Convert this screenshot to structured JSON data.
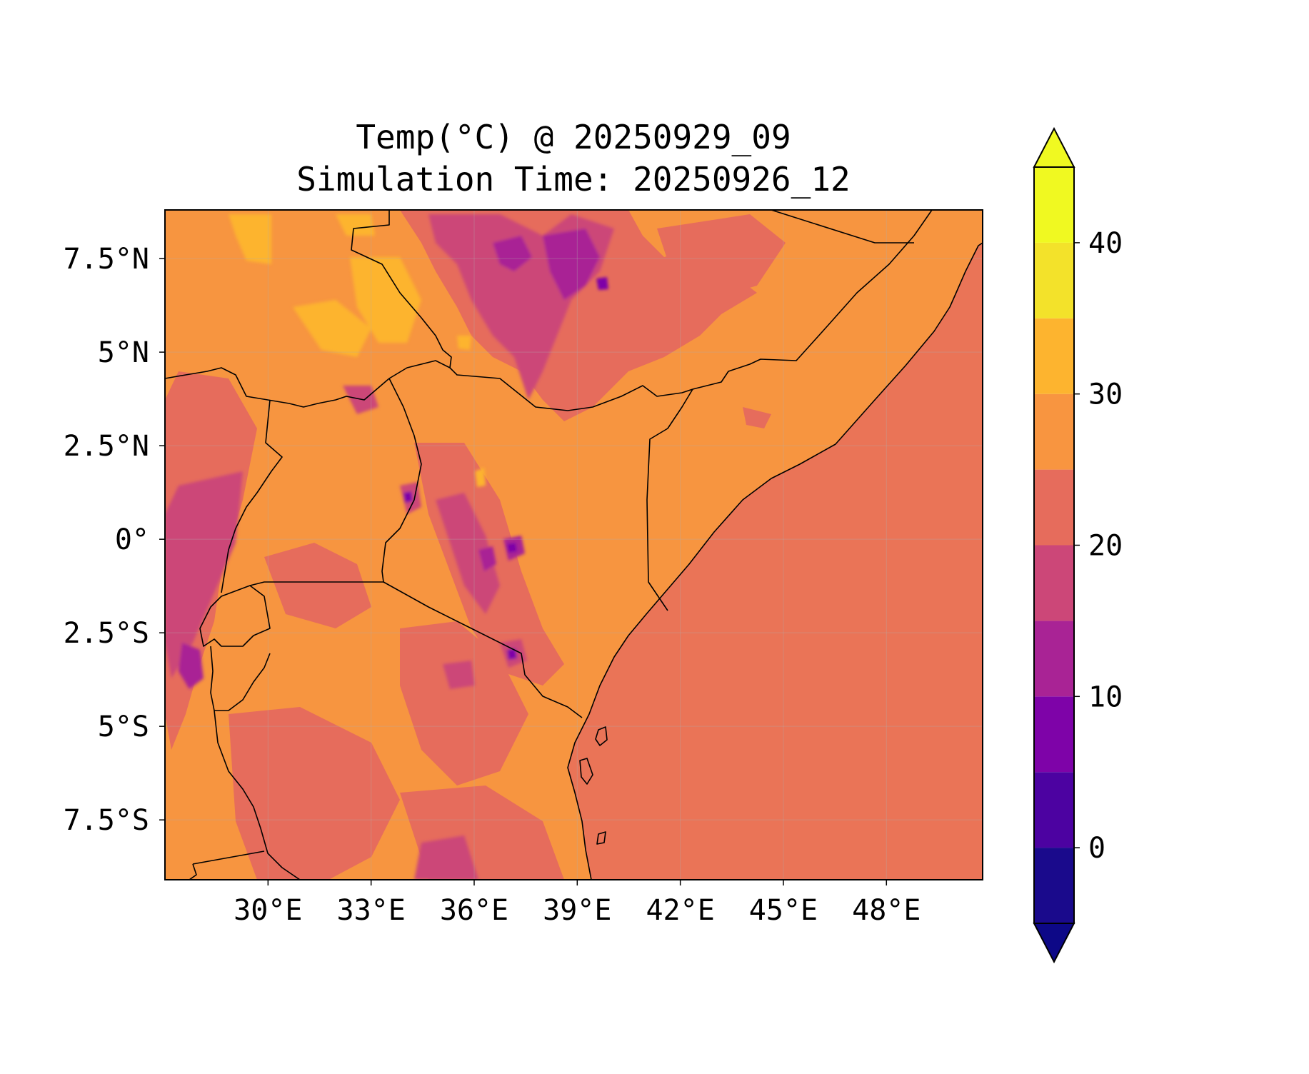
{
  "title": {
    "line1": "Temp(°C) @ 20250929_09",
    "line2": "Simulation Time: 20250926_12"
  },
  "map": {
    "lon_range": [
      27.0,
      50.8
    ],
    "lat_range": [
      -9.1,
      8.8
    ],
    "x_ticks": [
      {
        "value": 30,
        "label": "30°E"
      },
      {
        "value": 33,
        "label": "33°E"
      },
      {
        "value": 36,
        "label": "36°E"
      },
      {
        "value": 39,
        "label": "39°E"
      },
      {
        "value": 42,
        "label": "42°E"
      },
      {
        "value": 45,
        "label": "45°E"
      },
      {
        "value": 48,
        "label": "48°E"
      }
    ],
    "y_ticks": [
      {
        "value": 7.5,
        "label": "7.5°N"
      },
      {
        "value": 5,
        "label": "5°N"
      },
      {
        "value": 2.5,
        "label": "2.5°N"
      },
      {
        "value": 0,
        "label": "0°"
      },
      {
        "value": -2.5,
        "label": "2.5°S"
      },
      {
        "value": -5,
        "label": "5°S"
      },
      {
        "value": -7.5,
        "label": "7.5°S"
      }
    ],
    "gridlines": true,
    "ocean_color": "#ea7457",
    "land_color": "#f79540"
  },
  "colorbar": {
    "min": -5,
    "max": 45,
    "extend": "both",
    "levels": [
      -5,
      0,
      5,
      10,
      15,
      20,
      25,
      30,
      35,
      40,
      45
    ],
    "colors": [
      "#1a0a8c",
      "#4c02a1",
      "#7e03a8",
      "#a92395",
      "#cc4778",
      "#e66c5c",
      "#f89540",
      "#fdb42f",
      "#f3e22a",
      "#f0f921"
    ],
    "under_color": "#0d0887",
    "over_color": "#f0f921",
    "ticks": [
      {
        "value": 0,
        "label": "0"
      },
      {
        "value": 10,
        "label": "10"
      },
      {
        "value": 20,
        "label": "20"
      },
      {
        "value": 30,
        "label": "30"
      },
      {
        "value": 40,
        "label": "40"
      }
    ]
  }
}
